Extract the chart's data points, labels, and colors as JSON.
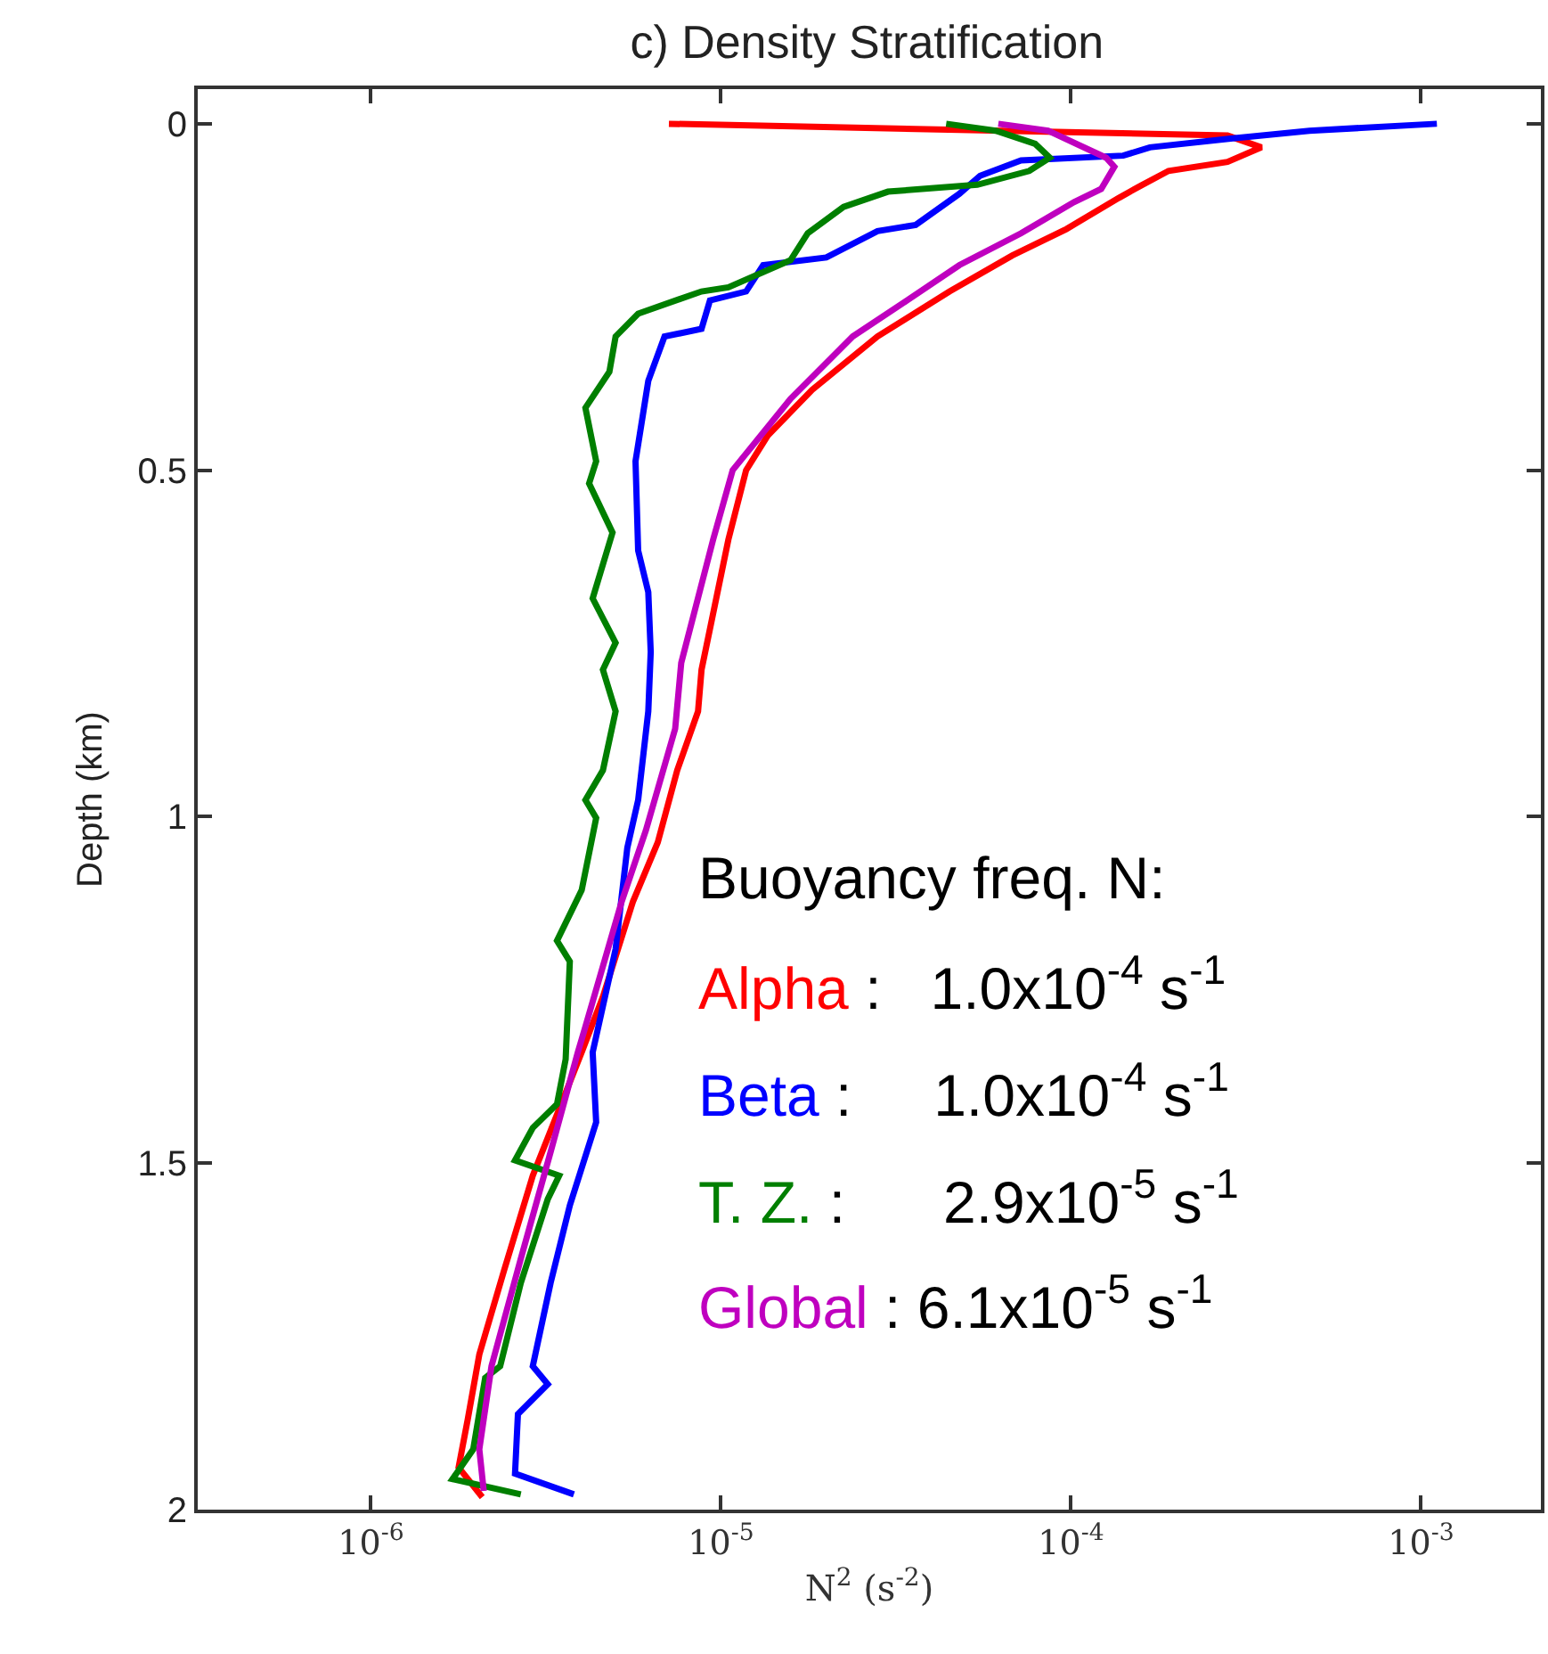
{
  "chart_data": {
    "type": "line",
    "title": "c) Density Stratification",
    "xlabel": "N$^{2}$ (s$^{-2}$)",
    "ylabel": "Depth (km)",
    "log": "x",
    "legend": false,
    "line_style": "solid",
    "marker": "none",
    "xlim": [
      3.2e-07,
      0.0022
    ],
    "xticks": [
      {
        "value": 1e-06,
        "label": "10$^{-6}$"
      },
      {
        "value": 1e-05,
        "label": "10$^{-5}$"
      },
      {
        "value": 0.0001,
        "label": "10$^{-4}$"
      },
      {
        "value": 0.001,
        "label": "10$^{-3}$"
      }
    ],
    "ylim": [
      2,
      -0.05
    ],
    "yticks": [
      0,
      0.5,
      1,
      1.5,
      2
    ],
    "annotations": [
      "Buoyancy freq. N:",
      " :   1.0x10$^{-4}$ s$^{-1}$",
      " :     1.0x10$^{-4}$ s$^{-1}$",
      " :      2.9x10$^{-5}$ s$^{-1}$",
      " : 6.1x10$^{-5}$ s$^{-1}$"
    ],
    "series": [
      {
        "name": "Alpha",
        "color": "#ff0000",
        "x": [
          7.1e-06,
          0.00028,
          0.00035,
          0.00028,
          0.00019,
          0.00016,
          0.000137,
          9.7e-05,
          6.8e-05,
          4.5e-05,
          2.8e-05,
          1.82e-05,
          1.36e-05,
          1.18e-05,
          1.05e-05,
          8.8e-06,
          8.6e-06,
          7.5e-06,
          6.6e-06,
          5.6e-06,
          4.6e-06,
          4e-06,
          2.9e-06,
          2.4e-06,
          2.04e-06,
          1.89e-06,
          1.78e-06,
          2.08e-06
        ],
        "values": [
          0,
          0.017,
          0.034,
          0.055,
          0.068,
          0.088,
          0.107,
          0.152,
          0.19,
          0.242,
          0.307,
          0.384,
          0.45,
          0.5,
          0.6,
          0.788,
          0.848,
          0.933,
          1.037,
          1.123,
          1.26,
          1.34,
          1.518,
          1.655,
          1.776,
          1.87,
          1.939,
          1.982
        ]
      },
      {
        "name": "Beta",
        "color": "#0000ff",
        "x": [
          0.00111,
          0.00048,
          0.00029,
          0.000168,
          0.000141,
          7.2e-05,
          5.5e-05,
          4.8e-05,
          3.6e-05,
          2.8e-05,
          2e-05,
          1.32e-05,
          1.18e-05,
          9.3e-06,
          8.8e-06,
          6.9e-06,
          6.2e-06,
          5.7e-06,
          5.8e-06,
          6.2e-06,
          6.3e-06,
          6.2e-06,
          5.8e-06,
          5.4e-06,
          5e-06,
          4.3e-06,
          4.4e-06,
          3.7e-06,
          3.26e-06,
          2.9e-06,
          3.2e-06,
          2.63e-06,
          2.58e-06,
          3.8e-06
        ],
        "values": [
          0,
          0.01,
          0.021,
          0.034,
          0.046,
          0.053,
          0.075,
          0.101,
          0.146,
          0.155,
          0.193,
          0.204,
          0.242,
          0.255,
          0.296,
          0.307,
          0.371,
          0.487,
          0.616,
          0.676,
          0.762,
          0.848,
          0.976,
          1.045,
          1.191,
          1.34,
          1.441,
          1.561,
          1.673,
          1.793,
          1.819,
          1.862,
          1.948,
          1.978
        ]
      },
      {
        "name": "T. Z.",
        "color": "#007f00",
        "x": [
          4.4e-05,
          6.1e-05,
          7.9e-05,
          8.7e-05,
          7.6e-05,
          5.4e-05,
          3e-05,
          2.24e-05,
          1.77e-05,
          1.58e-05,
          1.05e-05,
          8.8e-06,
          5.8e-06,
          5e-06,
          4.8e-06,
          4.1e-06,
          4.4e-06,
          4.2e-06,
          4.9e-06,
          4.3e-06,
          5e-06,
          4.6e-06,
          5e-06,
          4.6e-06,
          4.1e-06,
          4.4e-06,
          4e-06,
          3.4e-06,
          3.7e-06,
          3.6e-06,
          3.4e-06,
          2.9e-06,
          2.58e-06,
          3.45e-06,
          3.2e-06,
          2.68e-06,
          2.34e-06,
          2.12e-06,
          1.96e-06,
          1.71e-06,
          2.68e-06
        ],
        "values": [
          0,
          0.01,
          0.029,
          0.049,
          0.068,
          0.088,
          0.098,
          0.12,
          0.158,
          0.197,
          0.236,
          0.242,
          0.274,
          0.307,
          0.358,
          0.41,
          0.487,
          0.519,
          0.59,
          0.685,
          0.749,
          0.788,
          0.848,
          0.933,
          0.976,
          1.002,
          1.106,
          1.179,
          1.209,
          1.35,
          1.415,
          1.449,
          1.496,
          1.518,
          1.552,
          1.673,
          1.793,
          1.81,
          1.913,
          1.956,
          1.978
        ]
      },
      {
        "name": "Global",
        "color": "#bf00bf",
        "x": [
          6.2e-05,
          8.6e-05,
          0.000126,
          0.000133,
          0.000122,
          0.000102,
          7.2e-05,
          4.8e-05,
          3.4e-05,
          2.38e-05,
          1.58e-05,
          1.08e-05,
          9.5e-06,
          7.7e-06,
          7.4e-06,
          6.1e-06,
          5.2e-06,
          4.1e-06,
          3.9e-06,
          3.26e-06,
          2.68e-06,
          2.21e-06,
          2.04e-06,
          2.1e-06
        ],
        "values": [
          0,
          0.01,
          0.049,
          0.062,
          0.094,
          0.113,
          0.158,
          0.204,
          0.255,
          0.307,
          0.397,
          0.5,
          0.6,
          0.778,
          0.873,
          1.02,
          1.123,
          1.303,
          1.34,
          1.484,
          1.638,
          1.793,
          1.913,
          1.973
        ]
      }
    ]
  }
}
